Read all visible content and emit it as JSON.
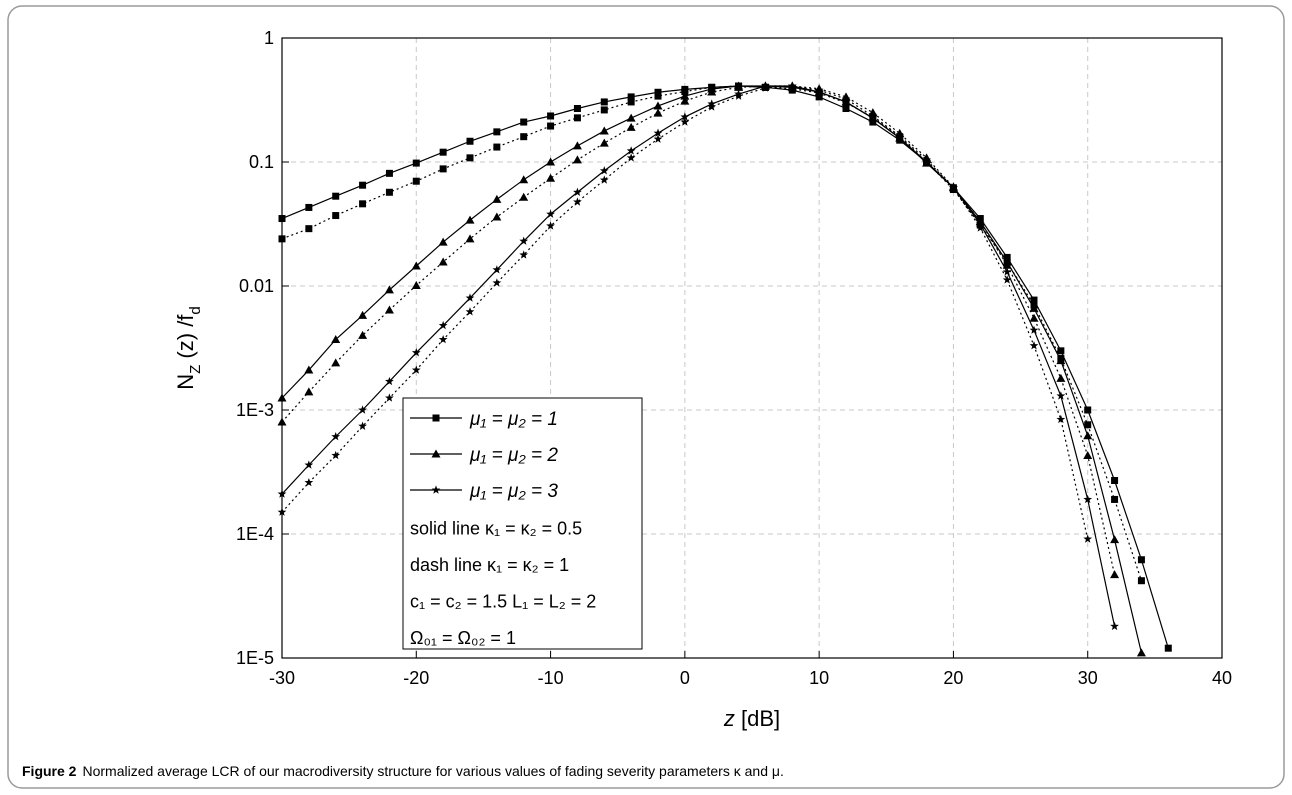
{
  "chart_data": {
    "type": "line",
    "log_y": true,
    "grid": true,
    "x_label_parts": [
      {
        "text": "z",
        "italic": true
      },
      {
        "text": " [dB]"
      }
    ],
    "y_label_parts": [
      {
        "text": "N"
      },
      {
        "text": "Z",
        "sub": true
      },
      {
        "text": " (z) /f"
      },
      {
        "text": "d",
        "sub": true
      }
    ],
    "caption_label": "Figure 2",
    "caption": "Normalized average LCR of our macrodiversity structure for various values of fading severity parameters κ and μ.",
    "xlim": [
      -30,
      40
    ],
    "xticks": [
      -30,
      -20,
      -10,
      0,
      10,
      20,
      30,
      40
    ],
    "ylim": [
      1e-05,
      1
    ],
    "yticks": [
      {
        "value": 1e-05,
        "label": "1E-5"
      },
      {
        "value": 0.0001,
        "label": "1E-4"
      },
      {
        "value": 0.001,
        "label": "1E-3"
      },
      0.01,
      0.1,
      1
    ],
    "x": [
      -30,
      -28,
      -26,
      -24,
      -22,
      -20,
      -18,
      -16,
      -14,
      -12,
      -10,
      -8,
      -6,
      -4,
      -2,
      0,
      2,
      4,
      6,
      8,
      10,
      12,
      14,
      16,
      18,
      20,
      22,
      24,
      26,
      28,
      30,
      32,
      34,
      36
    ],
    "series": [
      {
        "name": "μ₁ = μ₂ = 1",
        "color": "#000000",
        "dash": false,
        "marker": "square",
        "values": [
          0.035,
          0.043,
          0.053,
          0.065,
          0.081,
          0.098,
          0.12,
          0.147,
          0.175,
          0.21,
          0.235,
          0.27,
          0.305,
          0.335,
          0.365,
          0.385,
          0.4,
          0.41,
          0.4,
          0.38,
          0.335,
          0.27,
          0.21,
          0.15,
          0.1,
          0.062,
          0.035,
          0.017,
          0.0077,
          0.003,
          0.001,
          0.00027,
          6.2e-05,
          1.2e-05
        ]
      },
      {
        "color": "#000000",
        "dash": true,
        "marker": "square",
        "values": [
          0.024,
          0.029,
          0.037,
          0.046,
          0.057,
          0.07,
          0.088,
          0.108,
          0.132,
          0.16,
          0.195,
          0.227,
          0.263,
          0.305,
          0.34,
          0.37,
          0.4,
          0.41,
          0.4,
          0.39,
          0.36,
          0.3,
          0.23,
          0.16,
          0.1,
          0.06,
          0.031,
          0.0155,
          0.007,
          0.0026,
          0.00076,
          0.00019,
          4.2e-05,
          null
        ]
      },
      {
        "name": "μ₁ = μ₂ = 2",
        "color": "#000000",
        "dash": false,
        "marker": "triangle",
        "values": [
          0.00125,
          0.0021,
          0.0037,
          0.0058,
          0.0093,
          0.0145,
          0.0226,
          0.034,
          0.05,
          0.072,
          0.1,
          0.135,
          0.178,
          0.226,
          0.283,
          0.34,
          0.388,
          0.41,
          0.41,
          0.4,
          0.367,
          0.305,
          0.226,
          0.156,
          0.098,
          0.062,
          0.033,
          0.0156,
          0.0066,
          0.0025,
          0.00062,
          9e-05,
          1.1e-05,
          null
        ]
      },
      {
        "color": "#000000",
        "dash": true,
        "marker": "triangle",
        "values": [
          0.0008,
          0.0014,
          0.0024,
          0.004,
          0.0064,
          0.0101,
          0.0156,
          0.024,
          0.036,
          0.052,
          0.074,
          0.104,
          0.142,
          0.19,
          0.248,
          0.31,
          0.367,
          0.4,
          0.41,
          0.41,
          0.39,
          0.335,
          0.25,
          0.17,
          0.108,
          0.063,
          0.033,
          0.0147,
          0.0055,
          0.0018,
          0.00043,
          4.7e-05,
          null,
          null
        ]
      },
      {
        "name": "μ₁ = μ₂ = 3",
        "color": "#000000",
        "dash": false,
        "marker": "star",
        "values": [
          0.00021,
          0.00036,
          0.00061,
          0.001,
          0.0017,
          0.0029,
          0.0048,
          0.008,
          0.0135,
          0.023,
          0.038,
          0.057,
          0.085,
          0.123,
          0.171,
          0.231,
          0.294,
          0.353,
          0.41,
          0.41,
          0.367,
          0.305,
          0.226,
          0.156,
          0.1,
          0.062,
          0.0316,
          0.013,
          0.0044,
          0.0013,
          0.00019,
          1.8e-05,
          null,
          null
        ]
      },
      {
        "color": "#000000",
        "dash": true,
        "marker": "star",
        "values": [
          0.00015,
          0.00026,
          0.00043,
          0.00074,
          0.00125,
          0.0021,
          0.0037,
          0.0062,
          0.0106,
          0.0178,
          0.0305,
          0.0476,
          0.0716,
          0.108,
          0.153,
          0.21,
          0.278,
          0.34,
          0.395,
          0.41,
          0.38,
          0.322,
          0.235,
          0.162,
          0.104,
          0.062,
          0.0294,
          0.0112,
          0.0033,
          0.00084,
          9.1e-05,
          null,
          null,
          null
        ]
      }
    ],
    "legend_notes": [
      "solid line κ₁ =  κ₂ = 0.5",
      "dash line κ₁ =  κ₂ = 1",
      "c₁ = c₂ = 1.5  L₁ = L₂ = 2",
      "Ω₀₁ =  Ω₀₂ = 1"
    ]
  }
}
